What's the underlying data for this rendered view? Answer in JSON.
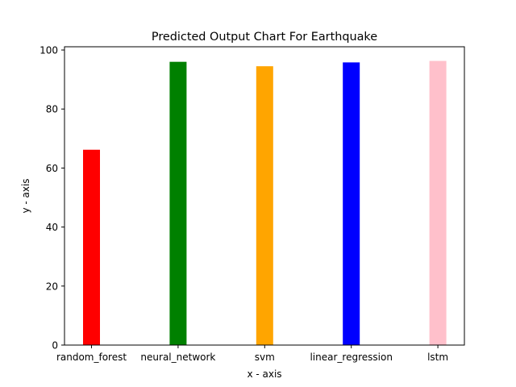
{
  "chart_data": {
    "type": "bar",
    "title": "Predicted Output Chart For Earthquake",
    "xlabel": "x - axis",
    "ylabel": "y - axis",
    "categories": [
      "random_forest",
      "neural_network",
      "svm",
      "linear_regression",
      "lstm"
    ],
    "values": [
      66.2,
      96.0,
      94.5,
      95.8,
      96.3
    ],
    "colors": [
      "#ff0000",
      "#008000",
      "#ffa500",
      "#0000ff",
      "#ffc0cb"
    ],
    "ylim": [
      0,
      101.1
    ],
    "yticks": [
      0,
      20,
      40,
      60,
      80,
      100
    ],
    "grid": false,
    "legend": "none"
  }
}
